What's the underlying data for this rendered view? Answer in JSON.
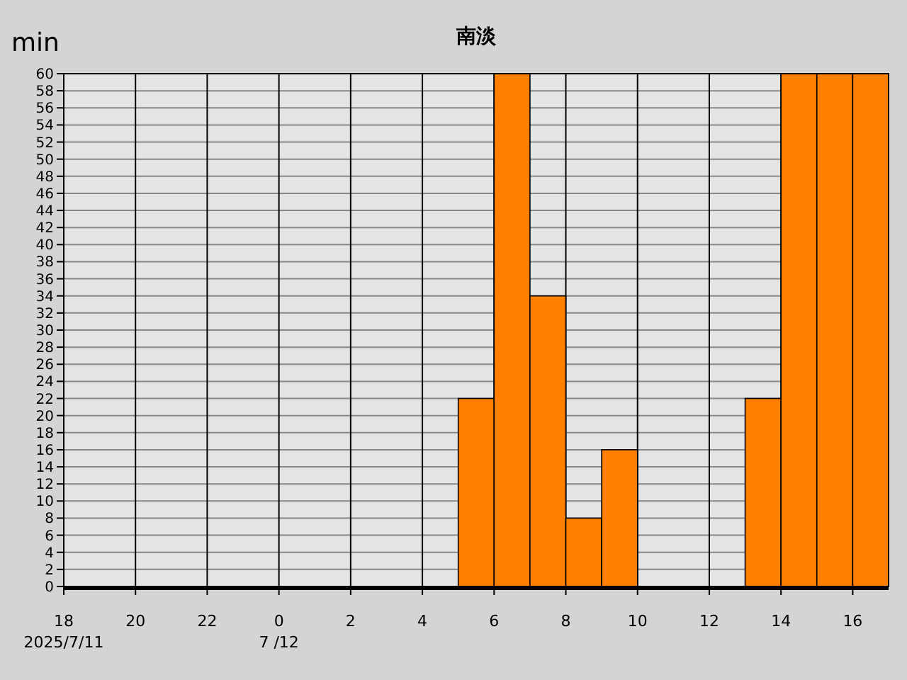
{
  "chart_data": {
    "type": "bar",
    "title": "南淡",
    "ylabel": "min",
    "x": [
      "2025-07-11T18:30",
      "2025-07-11T19:30",
      "2025-07-11T20:30",
      "2025-07-11T21:30",
      "2025-07-11T22:30",
      "2025-07-11T23:30",
      "2025-07-12T00:30",
      "2025-07-12T01:30",
      "2025-07-12T02:30",
      "2025-07-12T03:30",
      "2025-07-12T04:30",
      "2025-07-12T05:30",
      "2025-07-12T06:30",
      "2025-07-12T07:30",
      "2025-07-12T08:30",
      "2025-07-12T09:30",
      "2025-07-12T10:30",
      "2025-07-12T11:30",
      "2025-07-12T12:30",
      "2025-07-12T13:30",
      "2025-07-12T14:30",
      "2025-07-12T15:30",
      "2025-07-12T16:30"
    ],
    "values": [
      0,
      0,
      0,
      0,
      0,
      0,
      0,
      0,
      0,
      0,
      0,
      22,
      60,
      34,
      8,
      16,
      0,
      0,
      0,
      22,
      60,
      60,
      60
    ],
    "color": "#ff8000",
    "xlim": [
      "2025-07-11T18:00",
      "2025-07-12T17:00"
    ],
    "xticks": [
      {
        "value": "2025-07-11T18:00",
        "label": "18"
      },
      {
        "value": "2025-07-11T20:00",
        "label": "20"
      },
      {
        "value": "2025-07-11T22:00",
        "label": "22"
      },
      {
        "value": "2025-07-12T00:00",
        "label": "0"
      },
      {
        "value": "2025-07-12T02:00",
        "label": "2"
      },
      {
        "value": "2025-07-12T04:00",
        "label": "4"
      },
      {
        "value": "2025-07-12T06:00",
        "label": "6"
      },
      {
        "value": "2025-07-12T08:00",
        "label": "8"
      },
      {
        "value": "2025-07-12T10:00",
        "label": "10"
      },
      {
        "value": "2025-07-12T12:00",
        "label": "12"
      },
      {
        "value": "2025-07-12T14:00",
        "label": "14"
      },
      {
        "value": "2025-07-12T16:00",
        "label": "16"
      }
    ],
    "ylim": [
      0,
      60
    ],
    "yticks": [
      0,
      2,
      4,
      6,
      8,
      10,
      12,
      14,
      16,
      18,
      20,
      22,
      24,
      26,
      28,
      30,
      32,
      34,
      36,
      38,
      40,
      42,
      44,
      46,
      48,
      50,
      52,
      54,
      56,
      58,
      60
    ],
    "grid": true,
    "annotations": [
      "2025/7/11",
      "7 /12"
    ]
  }
}
